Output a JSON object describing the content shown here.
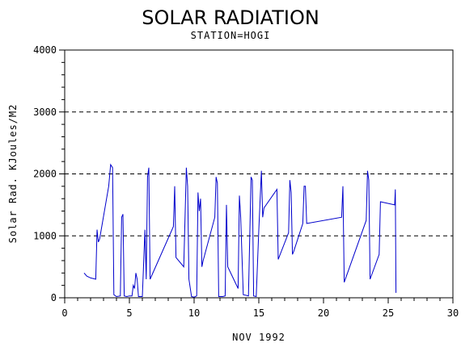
{
  "chart_data": {
    "type": "line",
    "title": "SOLAR RADIATION",
    "subtitle": "STATION=HOGI",
    "xlabel": "NOV 1992",
    "ylabel": "Solar Rad. KJoules/M2",
    "xlim": [
      0,
      30
    ],
    "ylim": [
      0,
      4000
    ],
    "xticks": [
      0,
      5,
      10,
      15,
      20,
      25,
      30
    ],
    "yticks": [
      0,
      1000,
      2000,
      3000,
      4000
    ],
    "grid": "horizontal dashed",
    "color": "#0000cc",
    "series": [
      {
        "x": [
          1.5,
          1.7,
          2.0,
          2.4,
          2.5,
          2.6,
          2.7,
          3.4,
          3.55,
          3.7,
          3.8,
          4.0,
          4.3,
          4.4,
          4.5,
          4.6,
          4.8,
          5.0,
          5.2,
          5.3,
          5.4,
          5.5,
          5.6,
          5.7,
          5.8,
          6.0,
          6.2,
          6.3,
          6.4,
          6.5,
          6.6,
          8.4,
          8.5,
          8.6,
          9.2,
          9.4,
          9.5,
          9.6,
          9.8,
          10.0,
          10.2,
          10.3,
          10.4,
          10.5,
          10.6,
          10.7,
          11.6,
          11.7,
          11.8,
          11.9,
          12.0,
          12.2,
          12.4,
          12.5,
          12.6,
          13.4,
          13.5,
          13.6,
          13.8,
          14.0,
          14.2,
          14.4,
          14.5,
          14.6,
          14.8,
          15.0,
          15.2,
          15.3,
          15.4,
          16.4,
          16.5,
          17.3,
          17.4,
          17.5,
          17.6,
          17.7,
          18.4,
          18.5,
          18.6,
          18.7,
          21.4,
          21.5,
          21.6,
          23.3,
          23.4,
          23.5,
          23.6,
          24.3,
          24.4,
          25.5,
          25.55,
          25.6
        ],
        "y": [
          400,
          350,
          320,
          300,
          1100,
          900,
          950,
          1800,
          2150,
          2100,
          50,
          20,
          30,
          1300,
          1350,
          30,
          20,
          30,
          30,
          200,
          150,
          400,
          300,
          20,
          20,
          20,
          1100,
          300,
          1950,
          2100,
          300,
          1150,
          1800,
          650,
          500,
          2100,
          1800,
          300,
          20,
          10,
          30,
          1700,
          1400,
          1600,
          500,
          600,
          1300,
          1950,
          1850,
          20,
          20,
          20,
          30,
          1500,
          500,
          150,
          1650,
          1300,
          50,
          40,
          30,
          1950,
          1900,
          30,
          20,
          1100,
          2050,
          1300,
          1450,
          1750,
          620,
          1050,
          1900,
          1700,
          700,
          750,
          1200,
          1800,
          1800,
          1200,
          1300,
          1800,
          250,
          1250,
          2050,
          1900,
          300,
          700,
          1550,
          1500,
          1750,
          80
        ]
      }
    ]
  }
}
